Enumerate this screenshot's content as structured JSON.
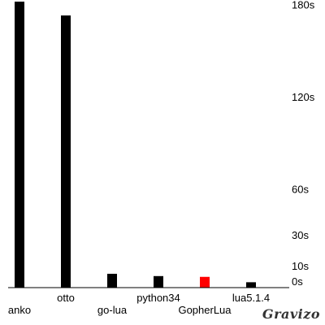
{
  "chart_data": {
    "type": "bar",
    "categories": [
      "anko",
      "otto",
      "go-lua",
      "python34",
      "GopherLua",
      "lua5.1.4"
    ],
    "values": [
      186,
      177,
      9,
      7.5,
      7,
      3.5
    ],
    "unit_suffix": "s",
    "y_ticks": [
      0,
      10,
      30,
      60,
      120,
      180
    ],
    "ylim": [
      0,
      186
    ],
    "highlight_category": "GopherLua",
    "colors": {
      "bar": "#000000",
      "highlight": "#ff0000",
      "axis": "#000000"
    },
    "legend": null,
    "grid": false
  },
  "watermark": "Gravizo"
}
